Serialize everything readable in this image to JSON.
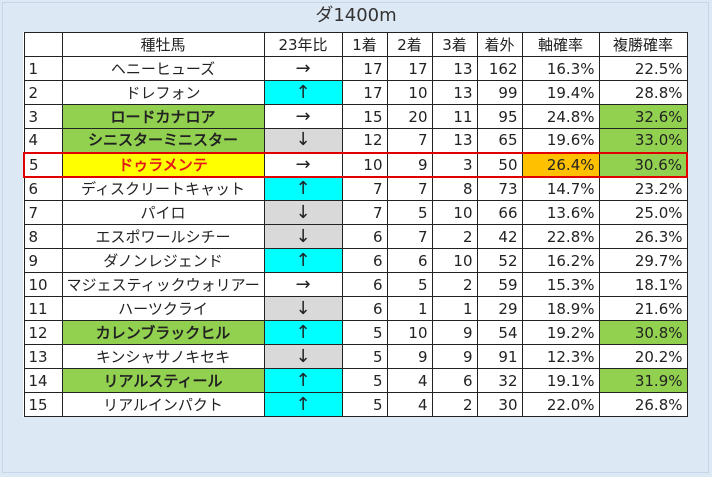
{
  "title": "ダ1400m",
  "headers": [
    "",
    "種牡馬",
    "23年比",
    "1着",
    "2着",
    "3着",
    "着外",
    "軸確率",
    "複勝確率"
  ],
  "rows": [
    {
      "rank": "1",
      "name": "ヘニーヒューズ",
      "trend": "→",
      "w1": "17",
      "w2": "17",
      "w3": "13",
      "out": "162",
      "axis": "16.3%",
      "place": "22.5%"
    },
    {
      "rank": "2",
      "name": "ドレフォン",
      "trend": "↑",
      "w1": "17",
      "w2": "10",
      "w3": "13",
      "out": "99",
      "axis": "19.4%",
      "place": "28.8%"
    },
    {
      "rank": "3",
      "name": "ロードカナロア",
      "trend": "→",
      "w1": "15",
      "w2": "20",
      "w3": "11",
      "out": "95",
      "axis": "24.8%",
      "place": "32.6%"
    },
    {
      "rank": "4",
      "name": "シニスターミニスター",
      "trend": "↓",
      "w1": "12",
      "w2": "7",
      "w3": "13",
      "out": "65",
      "axis": "19.6%",
      "place": "33.0%"
    },
    {
      "rank": "5",
      "name": "ドゥラメンテ",
      "trend": "→",
      "w1": "10",
      "w2": "9",
      "w3": "3",
      "out": "50",
      "axis": "26.4%",
      "place": "30.6%"
    },
    {
      "rank": "6",
      "name": "ディスクリートキャット",
      "trend": "↑",
      "w1": "7",
      "w2": "7",
      "w3": "8",
      "out": "73",
      "axis": "14.7%",
      "place": "23.2%"
    },
    {
      "rank": "7",
      "name": "パイロ",
      "trend": "↓",
      "w1": "7",
      "w2": "5",
      "w3": "10",
      "out": "66",
      "axis": "13.6%",
      "place": "25.0%"
    },
    {
      "rank": "8",
      "name": "エスポワールシチー",
      "trend": "↓",
      "w1": "6",
      "w2": "7",
      "w3": "2",
      "out": "42",
      "axis": "22.8%",
      "place": "26.3%"
    },
    {
      "rank": "9",
      "name": "ダノンレジェンド",
      "trend": "↑",
      "w1": "6",
      "w2": "6",
      "w3": "10",
      "out": "52",
      "axis": "16.2%",
      "place": "29.7%"
    },
    {
      "rank": "10",
      "name": "マジェスティックウォリアー",
      "trend": "→",
      "w1": "6",
      "w2": "5",
      "w3": "2",
      "out": "59",
      "axis": "15.3%",
      "place": "18.1%"
    },
    {
      "rank": "11",
      "name": "ハーツクライ",
      "trend": "↓",
      "w1": "6",
      "w2": "1",
      "w3": "1",
      "out": "29",
      "axis": "18.9%",
      "place": "21.6%"
    },
    {
      "rank": "12",
      "name": "カレンブラックヒル",
      "trend": "↑",
      "w1": "5",
      "w2": "10",
      "w3": "9",
      "out": "54",
      "axis": "19.2%",
      "place": "30.8%"
    },
    {
      "rank": "13",
      "name": "キンシャサノキセキ",
      "trend": "↓",
      "w1": "5",
      "w2": "9",
      "w3": "9",
      "out": "91",
      "axis": "12.3%",
      "place": "20.2%"
    },
    {
      "rank": "14",
      "name": "リアルスティール",
      "trend": "↑",
      "w1": "5",
      "w2": "4",
      "w3": "6",
      "out": "32",
      "axis": "19.1%",
      "place": "31.9%"
    },
    {
      "rank": "15",
      "name": "リアルインパクト",
      "trend": "↑",
      "w1": "5",
      "w2": "4",
      "w3": "2",
      "out": "30",
      "axis": "22.0%",
      "place": "26.8%"
    }
  ],
  "styles": {
    "bold_names": [
      "3",
      "4",
      "12",
      "14"
    ],
    "highlight_row": "5",
    "green_place": [
      "3",
      "4",
      "5",
      "12",
      "14"
    ],
    "orange_axis": [
      "5"
    ],
    "colors": {
      "up": "#00ffff",
      "down": "#d9d9d9",
      "green": "#92d050",
      "orange": "#ffc000",
      "highlight": "#ffff00",
      "highlight_text": "#e31919",
      "selection_border": "#e00000"
    }
  }
}
